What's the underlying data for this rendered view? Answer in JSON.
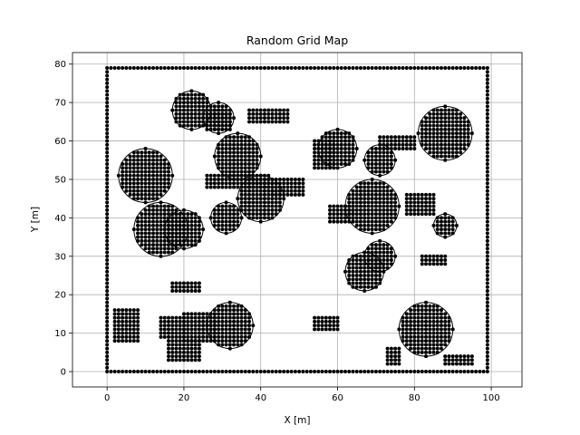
{
  "chart_data": {
    "type": "scatter",
    "title": "Random Grid Map",
    "xlabel": "X [m]",
    "ylabel": "Y [m]",
    "xlim": [
      -9,
      108
    ],
    "ylim": [
      -4,
      83
    ],
    "xticks": [
      0,
      20,
      40,
      60,
      80,
      100
    ],
    "yticks": [
      0,
      10,
      20,
      30,
      40,
      50,
      60,
      70,
      80
    ],
    "xtick_labels": [
      "0",
      "20",
      "40",
      "60",
      "80",
      "100"
    ],
    "ytick_labels": [
      "0",
      "10",
      "20",
      "30",
      "40",
      "50",
      "60",
      "70",
      "80"
    ],
    "grid": true,
    "marker": "circle",
    "marker_color": "#000000",
    "point_spacing": 1,
    "boundary": {
      "x_min": 0,
      "x_max": 99,
      "y_min": 0,
      "y_max": 79
    },
    "circular_obstacles": [
      {
        "cx": 10,
        "cy": 51,
        "r": 7
      },
      {
        "cx": 14,
        "cy": 37,
        "r": 7
      },
      {
        "cx": 20,
        "cy": 37,
        "r": 5
      },
      {
        "cx": 22,
        "cy": 68,
        "r": 5
      },
      {
        "cx": 29,
        "cy": 66,
        "r": 4
      },
      {
        "cx": 31,
        "cy": 40,
        "r": 4
      },
      {
        "cx": 34,
        "cy": 56,
        "r": 6
      },
      {
        "cx": 32,
        "cy": 12,
        "r": 6
      },
      {
        "cx": 40,
        "cy": 45,
        "r": 6
      },
      {
        "cx": 60,
        "cy": 58,
        "r": 5
      },
      {
        "cx": 71,
        "cy": 55,
        "r": 4
      },
      {
        "cx": 69,
        "cy": 43,
        "r": 7
      },
      {
        "cx": 71,
        "cy": 30,
        "r": 4
      },
      {
        "cx": 67,
        "cy": 26,
        "r": 5
      },
      {
        "cx": 88,
        "cy": 62,
        "r": 7
      },
      {
        "cx": 88,
        "cy": 38,
        "r": 3
      },
      {
        "cx": 83,
        "cy": 11,
        "r": 7
      }
    ],
    "rect_obstacles": [
      {
        "x": [
          2,
          8
        ],
        "y": [
          8,
          16
        ]
      },
      {
        "x": [
          14,
          20
        ],
        "y": [
          9,
          14
        ]
      },
      {
        "x": [
          16,
          24
        ],
        "y": [
          3,
          8
        ]
      },
      {
        "x": [
          20,
          28
        ],
        "y": [
          8,
          15
        ]
      },
      {
        "x": [
          17,
          24
        ],
        "y": [
          21,
          23
        ]
      },
      {
        "x": [
          26,
          32
        ],
        "y": [
          63,
          68
        ]
      },
      {
        "x": [
          26,
          42
        ],
        "y": [
          48,
          51
        ]
      },
      {
        "x": [
          37,
          47
        ],
        "y": [
          65,
          68
        ]
      },
      {
        "x": [
          43,
          51
        ],
        "y": [
          46,
          50
        ]
      },
      {
        "x": [
          54,
          59
        ],
        "y": [
          53,
          60
        ]
      },
      {
        "x": [
          54,
          60
        ],
        "y": [
          11,
          14
        ]
      },
      {
        "x": [
          58,
          64
        ],
        "y": [
          39,
          43
        ]
      },
      {
        "x": [
          71,
          80
        ],
        "y": [
          58,
          61
        ]
      },
      {
        "x": [
          78,
          85
        ],
        "y": [
          41,
          46
        ]
      },
      {
        "x": [
          82,
          88
        ],
        "y": [
          28,
          30
        ]
      },
      {
        "x": [
          73,
          76
        ],
        "y": [
          2,
          6
        ]
      },
      {
        "x": [
          88,
          95
        ],
        "y": [
          2,
          4
        ]
      }
    ]
  }
}
